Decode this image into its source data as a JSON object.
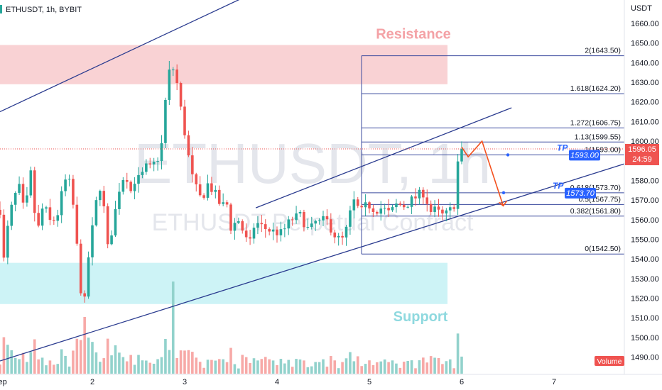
{
  "header": {
    "symbol": "ETHUSDT, 1h, BYBIT"
  },
  "watermark": {
    "title": "ETHUSDT, 1h",
    "subtitle": "ETHUSDT Perpetual Contract"
  },
  "axis": {
    "unit": "USDT",
    "y_ticks": [
      1660,
      1650,
      1640,
      1630,
      1620,
      1610,
      1600,
      1590,
      1580,
      1570,
      1560,
      1550,
      1540,
      1530,
      1520,
      1510,
      1500,
      1490
    ],
    "y_tick_labels": [
      "1660.00",
      "1650.00",
      "1640.00",
      "1630.00",
      "1620.00",
      "1610.00",
      "1600.00",
      "1590.00",
      "1580.00",
      "1570.00",
      "1560.00",
      "1550.00",
      "1540.00",
      "1530.00",
      "1520.00",
      "1510.00",
      "1500.00",
      "1490.00"
    ],
    "x_ticks": [
      1,
      2,
      3,
      4,
      5,
      6,
      7
    ],
    "x_tick_labels": [
      "Sep",
      "2",
      "3",
      "4",
      "5",
      "6",
      "7"
    ],
    "volume_label": "Volume"
  },
  "zones": {
    "resistance": {
      "label": "Resistance",
      "from": 1629,
      "to": 1649,
      "color": "#f9d2d4"
    },
    "support": {
      "label": "Support",
      "from": 1517,
      "to": 1538,
      "color": "#cdf3f6"
    }
  },
  "fib_levels": [
    {
      "ratio": "2",
      "price": 1643.5,
      "label": "2(1643.50)"
    },
    {
      "ratio": "1.618",
      "price": 1624.2,
      "label": "1.618(1624.20)"
    },
    {
      "ratio": "1.272",
      "price": 1606.75,
      "label": "1.272(1606.75)"
    },
    {
      "ratio": "1.13",
      "price": 1599.55,
      "label": "1.13(1599.55)"
    },
    {
      "ratio": "1",
      "price": 1593.0,
      "label": "1(1593.00)"
    },
    {
      "ratio": "0.618",
      "price": 1573.7,
      "label": "0.618(1573.70)"
    },
    {
      "ratio": "0.5",
      "price": 1567.75,
      "label": "0.5(1567.75)"
    },
    {
      "ratio": "0.382",
      "price": 1561.8,
      "label": "0.382(1561.80)"
    },
    {
      "ratio": "0",
      "price": 1542.5,
      "label": "0(1542.50)"
    }
  ],
  "targets": [
    {
      "label": "TP",
      "price": 1593.0,
      "box": "1593.00"
    },
    {
      "label": "TP",
      "price": 1573.7,
      "box": "1573.70"
    }
  ],
  "last_price": {
    "price": 1596.05,
    "label": "1596.05",
    "countdown": "24:59"
  },
  "colors": {
    "up": "#26a69a",
    "down": "#ef5350",
    "up_vol": "#92d2cc",
    "down_vol": "#f7a9a7",
    "channel": "#2a3b8f",
    "fib": "#3a4a9e",
    "path": "#f4511e",
    "tp": "#2962ff",
    "price_tag": "#ef5350"
  },
  "chart_data": {
    "type": "candlestick",
    "title": "ETHUSDT, 1h, BYBIT",
    "ylabel": "USDT",
    "ylim": [
      1485,
      1666
    ],
    "xlim": [
      1.0,
      7.8
    ],
    "anchors": [
      [
        1.0,
        1565
      ],
      [
        1.03,
        1535
      ],
      [
        1.1,
        1562
      ],
      [
        1.2,
        1578
      ],
      [
        1.27,
        1562
      ],
      [
        1.33,
        1585
      ],
      [
        1.4,
        1552
      ],
      [
        1.47,
        1568
      ],
      [
        1.55,
        1558
      ],
      [
        1.62,
        1562
      ],
      [
        1.7,
        1580
      ],
      [
        1.77,
        1578
      ],
      [
        1.83,
        1548
      ],
      [
        1.88,
        1522
      ],
      [
        1.92,
        1518
      ],
      [
        1.97,
        1548
      ],
      [
        2.02,
        1560
      ],
      [
        2.07,
        1580
      ],
      [
        2.12,
        1568
      ],
      [
        2.17,
        1544
      ],
      [
        2.24,
        1562
      ],
      [
        2.3,
        1578
      ],
      [
        2.36,
        1584
      ],
      [
        2.42,
        1574
      ],
      [
        2.47,
        1582
      ],
      [
        2.52,
        1580
      ],
      [
        2.57,
        1587
      ],
      [
        2.62,
        1586
      ],
      [
        2.7,
        1590
      ],
      [
        2.76,
        1600
      ],
      [
        2.81,
        1632
      ],
      [
        2.84,
        1636
      ],
      [
        2.86,
        1645
      ],
      [
        2.88,
        1634
      ],
      [
        2.91,
        1632
      ],
      [
        2.94,
        1620
      ],
      [
        2.97,
        1614
      ],
      [
        3.03,
        1595
      ],
      [
        3.08,
        1582
      ],
      [
        3.13,
        1575
      ],
      [
        3.18,
        1570
      ],
      [
        3.25,
        1578
      ],
      [
        3.32,
        1574
      ],
      [
        3.4,
        1566
      ],
      [
        3.45,
        1570
      ],
      [
        3.5,
        1556
      ],
      [
        3.58,
        1560
      ],
      [
        3.65,
        1552
      ],
      [
        3.7,
        1545
      ],
      [
        3.73,
        1556
      ],
      [
        3.79,
        1558
      ],
      [
        3.85,
        1556
      ],
      [
        3.95,
        1554
      ],
      [
        4.05,
        1553
      ],
      [
        4.15,
        1560
      ],
      [
        4.25,
        1562
      ],
      [
        4.35,
        1554
      ],
      [
        4.42,
        1559
      ],
      [
        4.48,
        1558
      ],
      [
        4.52,
        1561
      ],
      [
        4.58,
        1556
      ],
      [
        4.64,
        1551
      ],
      [
        4.7,
        1549
      ],
      [
        4.76,
        1556
      ],
      [
        4.8,
        1565
      ],
      [
        4.84,
        1570
      ],
      [
        4.9,
        1563
      ],
      [
        4.98,
        1568
      ],
      [
        5.06,
        1565
      ],
      [
        5.14,
        1566
      ],
      [
        5.22,
        1563
      ],
      [
        5.3,
        1568
      ],
      [
        5.38,
        1567
      ],
      [
        5.46,
        1570
      ],
      [
        5.52,
        1572
      ],
      [
        5.58,
        1574
      ],
      [
        5.62,
        1570
      ],
      [
        5.66,
        1564
      ],
      [
        5.72,
        1565
      ],
      [
        5.78,
        1562
      ],
      [
        5.84,
        1563
      ],
      [
        5.88,
        1565
      ],
      [
        5.92,
        1568
      ],
      [
        5.95,
        1584
      ],
      [
        5.98,
        1603
      ],
      [
        6.01,
        1598
      ]
    ],
    "projection_path": [
      [
        6.0,
        1597
      ],
      [
        6.07,
        1592
      ],
      [
        6.22,
        1600
      ],
      [
        6.45,
        1567
      ]
    ],
    "channels": [
      {
        "name": "upper",
        "from": [
          1.0,
          1615
        ],
        "to": [
          3.63,
          1673
        ]
      },
      {
        "name": "lower",
        "from": [
          1.0,
          1488
        ],
        "to": [
          7.8,
          1589
        ]
      },
      {
        "name": "rising",
        "from": [
          3.77,
          1566
        ],
        "to": [
          6.54,
          1617
        ]
      }
    ]
  }
}
